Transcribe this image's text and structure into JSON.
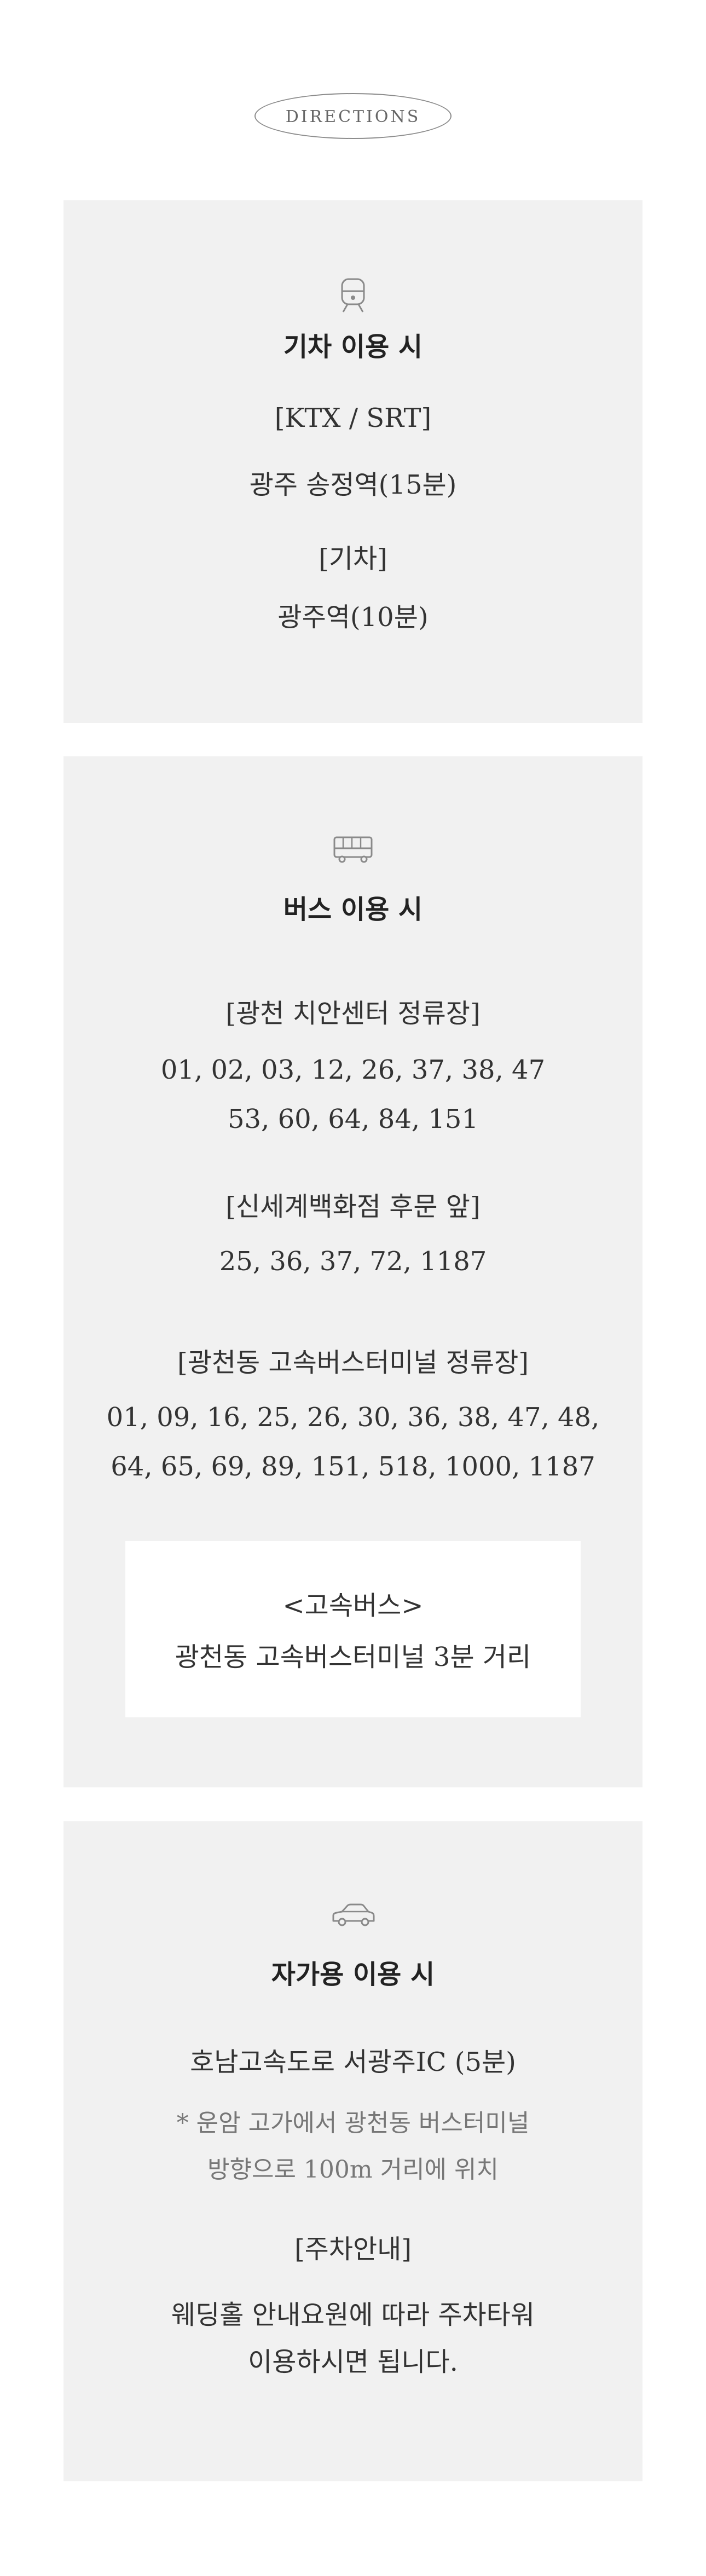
{
  "header": {
    "label": "DIRECTIONS"
  },
  "train": {
    "icon": "train-icon",
    "title": "기차 이용 시",
    "ktx_label": "[KTX / SRT]",
    "ktx_station": "광주 송정역(15분)",
    "rail_label": "[기차]",
    "rail_station": "광주역(10분)"
  },
  "bus": {
    "icon": "bus-icon",
    "title": "버스 이용 시",
    "stop1_label": "[광천 치안센터 정류장]",
    "stop1_line1": "01, 02, 03, 12, 26, 37, 38, 47",
    "stop1_line2": "53, 60, 64, 84, 151",
    "stop2_label": "[신세계백화점 후문 앞]",
    "stop2_line1": "25, 36, 37, 72, 1187",
    "stop3_label": "[광천동 고속버스터미널 정류장]",
    "stop3_line1": "01, 09, 16, 25, 26, 30, 36, 38, 47, 48,",
    "stop3_line2": "64, 65, 69, 89, 151, 518, 1000, 1187",
    "express_title": "<고속버스>",
    "express_text": "광천동 고속버스터미널 3분 거리"
  },
  "car": {
    "icon": "car-icon",
    "title": "자가용 이용 시",
    "route": "호남고속도로 서광주IC (5분)",
    "note_line1": "* 운암 고가에서 광천동 버스터미널",
    "note_line2": "방향으로 100m 거리에 위치",
    "parking_label": "[주차안내]",
    "parking_line1": "웨딩홀 안내요원에 따라 주차타워",
    "parking_line2": "이용하시면 됩니다."
  }
}
